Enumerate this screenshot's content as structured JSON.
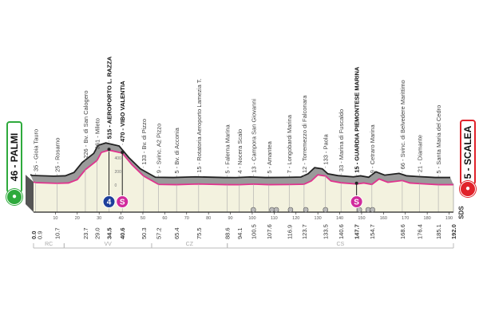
{
  "start": {
    "label": "46 - PALMI",
    "color": "#2eaa3c"
  },
  "finish": {
    "label": "5 - SCALEA",
    "color": "#e0222a"
  },
  "logo": "SDS",
  "chart_data": {
    "type": "area",
    "xlabel": "",
    "ylabel": "",
    "xlim": [
      0,
      192
    ],
    "altitude_ticks": [
      "400",
      "200",
      "0"
    ],
    "axis_ticks": [
      10,
      20,
      30,
      40,
      50,
      60,
      70,
      80,
      90,
      100,
      110,
      120,
      130,
      140,
      150,
      160,
      170,
      180,
      190
    ],
    "profile": [
      [
        0,
        46
      ],
      [
        0.9,
        35
      ],
      [
        10.7,
        25
      ],
      [
        16,
        30
      ],
      [
        20,
        80
      ],
      [
        23.7,
        226
      ],
      [
        29,
        361
      ],
      [
        31,
        480
      ],
      [
        34.5,
        515
      ],
      [
        40.6,
        470
      ],
      [
        45,
        300
      ],
      [
        50.3,
        133
      ],
      [
        57.2,
        9
      ],
      [
        65.4,
        5
      ],
      [
        72,
        12
      ],
      [
        75.5,
        15
      ],
      [
        88.6,
        5
      ],
      [
        94.1,
        4
      ],
      [
        100.5,
        13
      ],
      [
        107.6,
        5
      ],
      [
        116.9,
        7
      ],
      [
        123.7,
        12
      ],
      [
        127,
        60
      ],
      [
        130,
        150
      ],
      [
        133.5,
        133
      ],
      [
        136,
        60
      ],
      [
        140.6,
        33
      ],
      [
        147.7,
        15
      ],
      [
        151,
        30
      ],
      [
        154.7,
        9
      ],
      [
        158,
        90
      ],
      [
        162,
        40
      ],
      [
        168.6,
        66
      ],
      [
        172,
        30
      ],
      [
        176.4,
        21
      ],
      [
        185.1,
        5
      ],
      [
        192,
        5
      ]
    ],
    "waypoints": [
      {
        "km": 0.9,
        "label": "35 - Gioia Tauro",
        "bold": false
      },
      {
        "km": 10.7,
        "label": "25 - Rosarno",
        "bold": false
      },
      {
        "km": 23.7,
        "label": "226 - Bv. di San Calogero",
        "bold": false
      },
      {
        "km": 29.0,
        "label": "361 - Mileto",
        "bold": false
      },
      {
        "km": 34.5,
        "label": "515 - AEROPORTO L. RAZZA",
        "bold": true
      },
      {
        "km": 40.6,
        "label": "470 - VIBO VALENTIA",
        "bold": true
      },
      {
        "km": 50.3,
        "label": "133 - Bv. di Pizzo",
        "bold": false
      },
      {
        "km": 57.2,
        "label": "9 - Svinc. A2 Pizzo",
        "bold": false
      },
      {
        "km": 65.4,
        "label": "5 - Bv. di Acconia",
        "bold": false
      },
      {
        "km": 75.5,
        "label": "15 - Rotatoria Aeroporto Lamezia T.",
        "bold": false
      },
      {
        "km": 88.6,
        "label": "5 - Falerna Marina",
        "bold": false
      },
      {
        "km": 94.1,
        "label": "4 - Nocera Scalo",
        "bold": false
      },
      {
        "km": 100.5,
        "label": "13 - Campora San Giovanni",
        "bold": false
      },
      {
        "km": 107.6,
        "label": "5 - Amantea",
        "bold": false
      },
      {
        "km": 116.9,
        "label": "7 - Longobardi Marina",
        "bold": false
      },
      {
        "km": 123.7,
        "label": "12 - Torremezzo di Falconara",
        "bold": false
      },
      {
        "km": 133.5,
        "label": "133 - Paola",
        "bold": false
      },
      {
        "km": 140.6,
        "label": "33 - Marina di Fuscaldo",
        "bold": false
      },
      {
        "km": 147.7,
        "label": "15 - GUARDIA PIEMONTESE MARINA",
        "bold": true
      },
      {
        "km": 154.7,
        "label": "9 - Cetraro Marina",
        "bold": false
      },
      {
        "km": 168.6,
        "label": "66 - Svinc. di Belvedere Marittimo",
        "bold": false
      },
      {
        "km": 176.4,
        "label": "21 - Diamante",
        "bold": false
      },
      {
        "km": 185.1,
        "label": "5 - Santa Maria del Cedro",
        "bold": false
      }
    ],
    "km_labels": [
      {
        "km": 0,
        "label": "0.0",
        "bold": true
      },
      {
        "km": 0.9,
        "label": "0.9",
        "bold": false
      },
      {
        "km": 10.7,
        "label": "10.7",
        "bold": false
      },
      {
        "km": 23.7,
        "label": "23.7",
        "bold": false
      },
      {
        "km": 29.0,
        "label": "29.0",
        "bold": false
      },
      {
        "km": 34.5,
        "label": "34.5",
        "bold": true
      },
      {
        "km": 40.6,
        "label": "40.6",
        "bold": true
      },
      {
        "km": 50.3,
        "label": "50.3",
        "bold": false
      },
      {
        "km": 57.2,
        "label": "57.2",
        "bold": false
      },
      {
        "km": 65.4,
        "label": "65.4",
        "bold": false
      },
      {
        "km": 75.5,
        "label": "75.5",
        "bold": false
      },
      {
        "km": 88.6,
        "label": "88.6",
        "bold": false
      },
      {
        "km": 94.1,
        "label": "94.1",
        "bold": false
      },
      {
        "km": 100.5,
        "label": "100.5",
        "bold": false
      },
      {
        "km": 107.6,
        "label": "107.6",
        "bold": false
      },
      {
        "km": 116.9,
        "label": "116.9",
        "bold": false
      },
      {
        "km": 123.7,
        "label": "123.7",
        "bold": false
      },
      {
        "km": 133.5,
        "label": "133.5",
        "bold": false
      },
      {
        "km": 140.6,
        "label": "140.6",
        "bold": false
      },
      {
        "km": 147.7,
        "label": "147.7",
        "bold": true
      },
      {
        "km": 154.7,
        "label": "154.7",
        "bold": false
      },
      {
        "km": 168.6,
        "label": "168.6",
        "bold": false
      },
      {
        "km": 176.4,
        "label": "176.4",
        "bold": false
      },
      {
        "km": 185.1,
        "label": "185.1",
        "bold": false
      },
      {
        "km": 192.0,
        "label": "192.0",
        "bold": true
      }
    ],
    "markers": [
      {
        "km": 34.5,
        "label": "4",
        "type": "climb-4th-category",
        "color": "#1e3f9a"
      },
      {
        "km": 40.6,
        "label": "S",
        "type": "intermediate-sprint",
        "color": "#d12a9c"
      },
      {
        "km": 147.7,
        "label": "S",
        "type": "intermediate-sprint",
        "color": "#d12a9c"
      }
    ],
    "rail_crossings": [
      100.5,
      109,
      111,
      117.5,
      124.5,
      133.5,
      149,
      153,
      155
    ],
    "provinces": [
      {
        "label": "RC",
        "from": 0,
        "to": 14
      },
      {
        "label": "VV",
        "from": 14,
        "to": 54
      },
      {
        "label": "CZ",
        "from": 54,
        "to": 88.6
      },
      {
        "label": "CS",
        "from": 88.6,
        "to": 192
      }
    ],
    "colors": {
      "profile_line": "#e0338e",
      "plain": "#f3f2df",
      "relief": "#9a9a9a",
      "ridge": "#222222"
    }
  }
}
